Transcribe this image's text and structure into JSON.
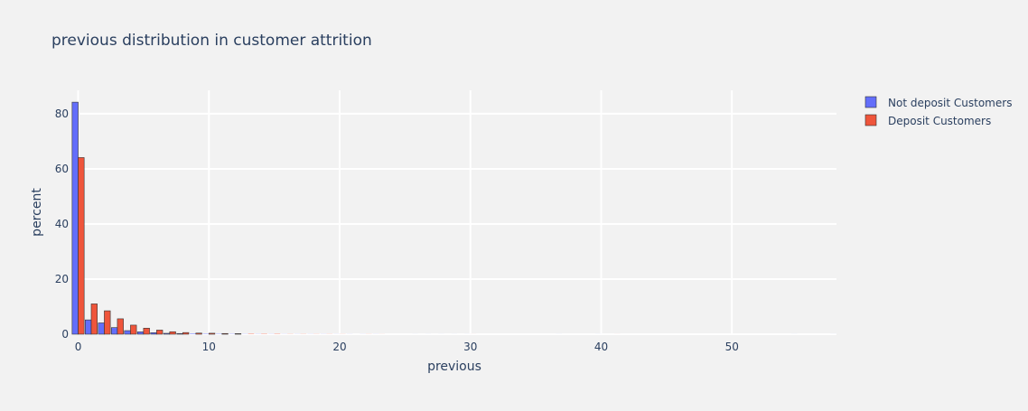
{
  "chart_data": {
    "type": "bar",
    "title": "previous distribution in customer attrition",
    "xlabel": "previous",
    "ylabel": "percent",
    "xlim": [
      -0.45,
      58
    ],
    "ylim": [
      0,
      88.5
    ],
    "x_ticks": [
      0,
      10,
      20,
      30,
      40,
      50
    ],
    "y_ticks": [
      0,
      20,
      40,
      60,
      80
    ],
    "grid": true,
    "legend": "top-right",
    "x": [
      0,
      1,
      2,
      3,
      4,
      5,
      6,
      7,
      8,
      9,
      10,
      11,
      12,
      13,
      14,
      15,
      16,
      17,
      18,
      19,
      20,
      21,
      22,
      23,
      24,
      25,
      26,
      27,
      28,
      29,
      30,
      31,
      32,
      33,
      34,
      35,
      36,
      37,
      38,
      39,
      40,
      41,
      42,
      43,
      44,
      45,
      46,
      47,
      48,
      49,
      50,
      51,
      52,
      53,
      54,
      55,
      56,
      57,
      58
    ],
    "series": [
      {
        "name": "Not deposit Customers",
        "color": "#636efa",
        "values": [
          84.2,
          5.2,
          4.1,
          2.4,
          1.3,
          0.85,
          0.55,
          0.32,
          0.25,
          0.17,
          0.12,
          0.1,
          0.08,
          0.05,
          0.05,
          0.04,
          0.03,
          0.03,
          0.03,
          0.03,
          0.02,
          0.02,
          0.02,
          0.02,
          0,
          0,
          0.01,
          0.01,
          0.01,
          0.01,
          0.01,
          0,
          0,
          0,
          0,
          0,
          0,
          0.01,
          0,
          0,
          0.01,
          0,
          0,
          0,
          0,
          0,
          0,
          0,
          0,
          0,
          0,
          0,
          0,
          0,
          0,
          0.01,
          0,
          0,
          0.01
        ]
      },
      {
        "name": "Deposit Customers",
        "color": "#ef553b",
        "values": [
          64.1,
          11.0,
          8.5,
          5.6,
          3.3,
          2.2,
          1.5,
          0.9,
          0.6,
          0.4,
          0.35,
          0.25,
          0.2,
          0.12,
          0.1,
          0.1,
          0.05,
          0.05,
          0.04,
          0.04,
          0.03,
          0,
          0.03,
          0.02,
          0,
          0,
          0,
          0,
          0,
          0,
          0.01,
          0,
          0,
          0,
          0,
          0,
          0,
          0,
          0,
          0,
          0,
          0.01,
          0,
          0,
          0,
          0,
          0,
          0,
          0,
          0,
          0,
          0,
          0,
          0,
          0,
          0,
          0,
          0,
          0
        ]
      }
    ]
  }
}
